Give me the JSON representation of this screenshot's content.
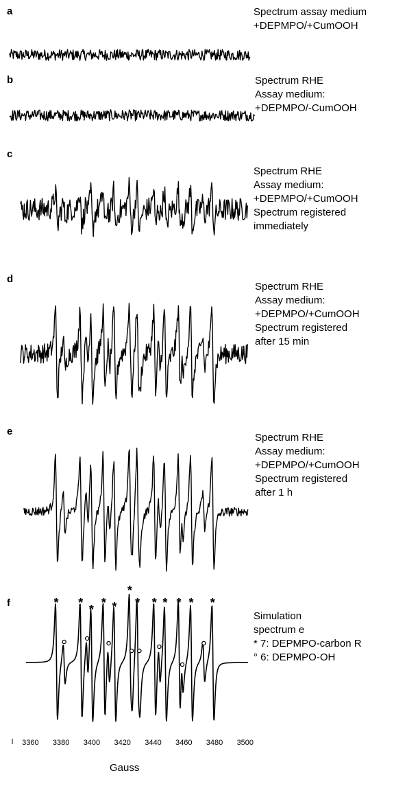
{
  "chart_data": {
    "type": "line",
    "xlabel": "Gauss",
    "xlim": [
      3350,
      3505
    ],
    "xticks": [
      3360,
      3380,
      3400,
      3420,
      3440,
      3460,
      3480,
      3500
    ],
    "panels": [
      {
        "letter": "a",
        "caption": [
          "Spectrum assay medium",
          "+DEPMPO/+CumOOH"
        ],
        "kind": "noise",
        "noise": 0.45,
        "signal": 0
      },
      {
        "letter": "b",
        "caption": [
          "Spectrum RHE",
          "Assay medium:",
          "+DEPMPO/-CumOOH"
        ],
        "kind": "noise",
        "noise": 0.45,
        "signal": 0
      },
      {
        "letter": "c",
        "caption": [
          "Spectrum RHE",
          "Assay medium:",
          "+DEPMPO/+CumOOH",
          "Spectrum registered",
          "immediately"
        ],
        "kind": "spectrum",
        "noise": 0.28,
        "signal": 0.55
      },
      {
        "letter": "d",
        "caption": [
          "Spectrum RHE",
          "Assay medium:",
          "+DEPMPO/+CumOOH",
          "Spectrum registered",
          "after 15 min"
        ],
        "kind": "spectrum",
        "noise": 0.16,
        "signal": 0.85
      },
      {
        "letter": "e",
        "caption": [
          "Spectrum RHE",
          "Assay medium:",
          "+DEPMPO/+CumOOH",
          "Spectrum registered",
          "after 1 h"
        ],
        "kind": "spectrum",
        "noise": 0.07,
        "signal": 1.0
      },
      {
        "letter": "f",
        "caption": [
          "Simulation",
          "spectrum e",
          "* 7: DEPMPO-carbon R",
          "° 6: DEPMPO-OH"
        ],
        "kind": "simulation",
        "noise": 0,
        "signal": 1.0
      }
    ],
    "carbon_R_lines_gauss": [
      3377,
      3393,
      3400,
      3408,
      3415,
      3425,
      3430,
      3441,
      3448,
      3457,
      3465,
      3479
    ],
    "oh_lines_gauss": [
      3382,
      3397,
      3411,
      3426,
      3431,
      3444,
      3459,
      3473
    ],
    "annotation_markers": {
      "carbon": "*",
      "hydroxyl": "o"
    }
  }
}
